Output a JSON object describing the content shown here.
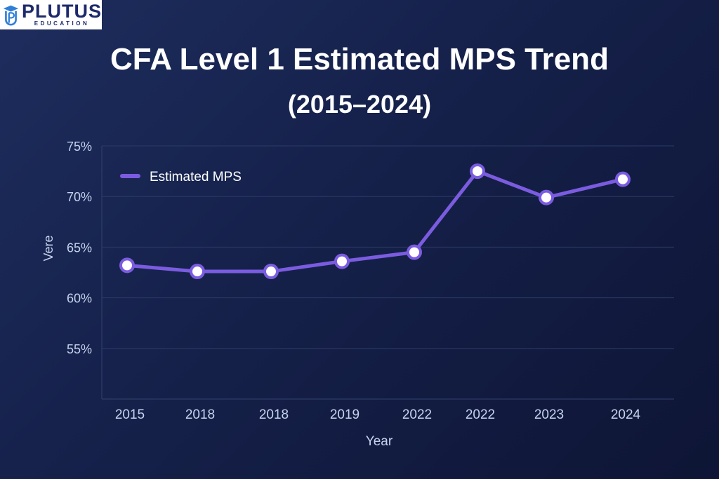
{
  "logo": {
    "brand": "PLUTUS",
    "sub": "EDUCATION"
  },
  "chart_data": {
    "type": "line",
    "title": "CFA Level 1 Estimated MPS Trend",
    "subtitle": "(2015–2024)",
    "xlabel": "Year",
    "ylabel": "Vere",
    "categories": [
      "2015",
      "2018",
      "2018",
      "2019",
      "2022",
      "2022",
      "2023",
      "2024"
    ],
    "series": [
      {
        "name": "Estimated MPS",
        "color": "#7b5ce0",
        "values": [
          63.2,
          62.6,
          62.6,
          63.6,
          64.5,
          72.5,
          69.9,
          71.7
        ]
      }
    ],
    "ylim": [
      50,
      75
    ],
    "yticks": [
      55,
      60,
      65,
      70,
      75
    ],
    "ytick_labels": [
      "55%",
      "60%",
      "65%",
      "70%",
      "75%"
    ],
    "grid": true,
    "legend_position": "top-left"
  }
}
